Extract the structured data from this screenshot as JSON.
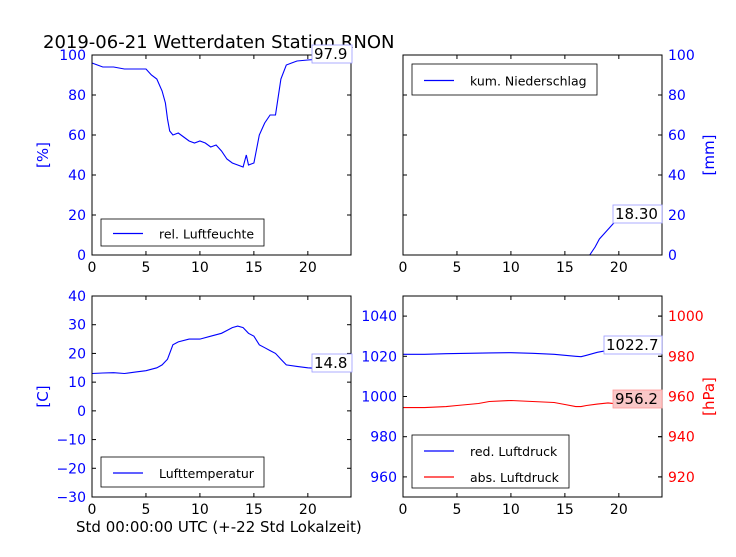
{
  "page": {
    "title": "2019-06-21 Wetterdaten Station RNON",
    "xlabel": "Std 00:00:00 UTC (+-22 Std Lokalzeit)"
  },
  "chart_data": [
    {
      "type": "line",
      "xlim": [
        0,
        24
      ],
      "ylim": [
        0,
        100
      ],
      "ylabel": "[%]",
      "ylabel_color": "#0000ff",
      "xticks": [
        0,
        5,
        10,
        15,
        20
      ],
      "yticks": [
        0,
        20,
        40,
        60,
        80,
        100
      ],
      "tick_color": "#0000ff",
      "legend": "bottom-left",
      "annotation": "97.9",
      "series": [
        {
          "name": "rel. Luftfeuchte",
          "color": "#0000ff",
          "x": [
            0,
            0.5,
            1,
            2,
            3,
            4,
            5,
            5.5,
            6,
            6.5,
            6.8,
            7,
            7.2,
            7.5,
            8,
            8.5,
            9,
            9.5,
            10,
            10.5,
            11,
            11.5,
            12,
            12.5,
            13,
            13.5,
            14,
            14.3,
            14.5,
            15,
            15.5,
            16,
            16.5,
            17,
            17.5,
            18,
            18.5,
            19,
            20,
            21,
            22,
            23,
            24
          ],
          "values": [
            96,
            95,
            94,
            94,
            93,
            93,
            93,
            90,
            88,
            82,
            76,
            68,
            62,
            60,
            61,
            59,
            57,
            56,
            57,
            56,
            54,
            55,
            52,
            48,
            46,
            45,
            44,
            50,
            45,
            46,
            60,
            66,
            70,
            70,
            88,
            95,
            96,
            97,
            97.5,
            97.9,
            97.9,
            97.9,
            97.9
          ]
        }
      ]
    },
    {
      "type": "line",
      "xlim": [
        0,
        24
      ],
      "ylim": [
        0,
        100
      ],
      "ylabel": "[mm]",
      "ylabel_color": "#0000ff",
      "xticks": [
        0,
        5,
        10,
        15,
        20
      ],
      "yticks": [
        0,
        20,
        40,
        60,
        80,
        100
      ],
      "tick_color": "#0000ff",
      "legend": "top-left",
      "annotation": "18.30",
      "series": [
        {
          "name": "kum. Niederschlag",
          "color": "#0000ff",
          "x": [
            0,
            5,
            10,
            15,
            17.3,
            17.8,
            18.2,
            18.7,
            19.2,
            19.7,
            20,
            21,
            22,
            23,
            24
          ],
          "values": [
            0,
            0,
            0,
            0,
            0,
            4,
            8,
            11,
            14,
            17,
            18.3,
            18.3,
            18.3,
            18.3,
            18.3
          ]
        }
      ]
    },
    {
      "type": "line",
      "xlim": [
        0,
        24
      ],
      "ylim": [
        -30,
        40
      ],
      "ylabel": "[C]",
      "ylabel_color": "#0000ff",
      "xticks": [
        0,
        5,
        10,
        15,
        20
      ],
      "yticks": [
        -30,
        -20,
        -10,
        0,
        10,
        20,
        30,
        40
      ],
      "tick_color": "#0000ff",
      "legend": "bottom-left",
      "annotation": "14.8",
      "series": [
        {
          "name": "Lufttemperatur",
          "color": "#0000ff",
          "x": [
            0,
            1,
            2,
            3,
            4,
            5,
            6,
            6.5,
            7,
            7.5,
            8,
            9,
            10,
            11,
            12,
            12.5,
            13,
            13.5,
            14,
            14.5,
            15,
            15.5,
            16,
            16.5,
            17,
            17.5,
            18,
            19,
            20,
            21,
            22,
            23,
            24
          ],
          "values": [
            13,
            13.2,
            13.3,
            13,
            13.5,
            14,
            15,
            16,
            18,
            23,
            24,
            25,
            25,
            26,
            27,
            28,
            29,
            29.5,
            29,
            27,
            26,
            23,
            22,
            21,
            20,
            18,
            16,
            15.5,
            15,
            14.8,
            14.8,
            14.8,
            14.8
          ]
        }
      ]
    },
    {
      "type": "line",
      "xlim": [
        0,
        24
      ],
      "ylim": [
        950,
        1050
      ],
      "ylabel": "[hPa]",
      "ylabel_color": "#ff0000",
      "xticks": [
        0,
        5,
        10,
        15,
        20
      ],
      "yticks": [
        960,
        980,
        1000,
        1020,
        1040
      ],
      "tick_color": "#0000ff",
      "right_ylim": [
        910,
        1010
      ],
      "right_yticks": [
        920,
        940,
        960,
        980,
        1000
      ],
      "right_tick_color": "#ff0000",
      "legend": "bottom-left",
      "annotations": [
        "1022.7",
        "956.2"
      ],
      "series": [
        {
          "name": "red. Luftdruck",
          "color": "#0000ff",
          "axis": "left",
          "x": [
            0,
            2,
            4,
            6,
            8,
            10,
            12,
            14,
            16,
            16.5,
            17,
            18,
            19,
            20,
            22,
            24
          ],
          "values": [
            1021,
            1021,
            1021.3,
            1021.5,
            1021.7,
            1021.8,
            1021.5,
            1021,
            1020,
            1019.8,
            1020.5,
            1022,
            1023,
            1022.7,
            1022.7,
            1022.7
          ]
        },
        {
          "name": "abs. Luftdruck",
          "color": "#ff0000",
          "axis": "right",
          "x": [
            0,
            2,
            4,
            5,
            6,
            7,
            8,
            10,
            12,
            14,
            15,
            16,
            16.5,
            17,
            18,
            19,
            20,
            22,
            24
          ],
          "values": [
            954.5,
            954.5,
            955,
            955.5,
            956,
            956.5,
            957.5,
            958,
            957.5,
            957,
            956,
            955,
            955,
            955.5,
            956.2,
            956.8,
            956.2,
            956.2,
            956.2
          ]
        }
      ]
    }
  ]
}
